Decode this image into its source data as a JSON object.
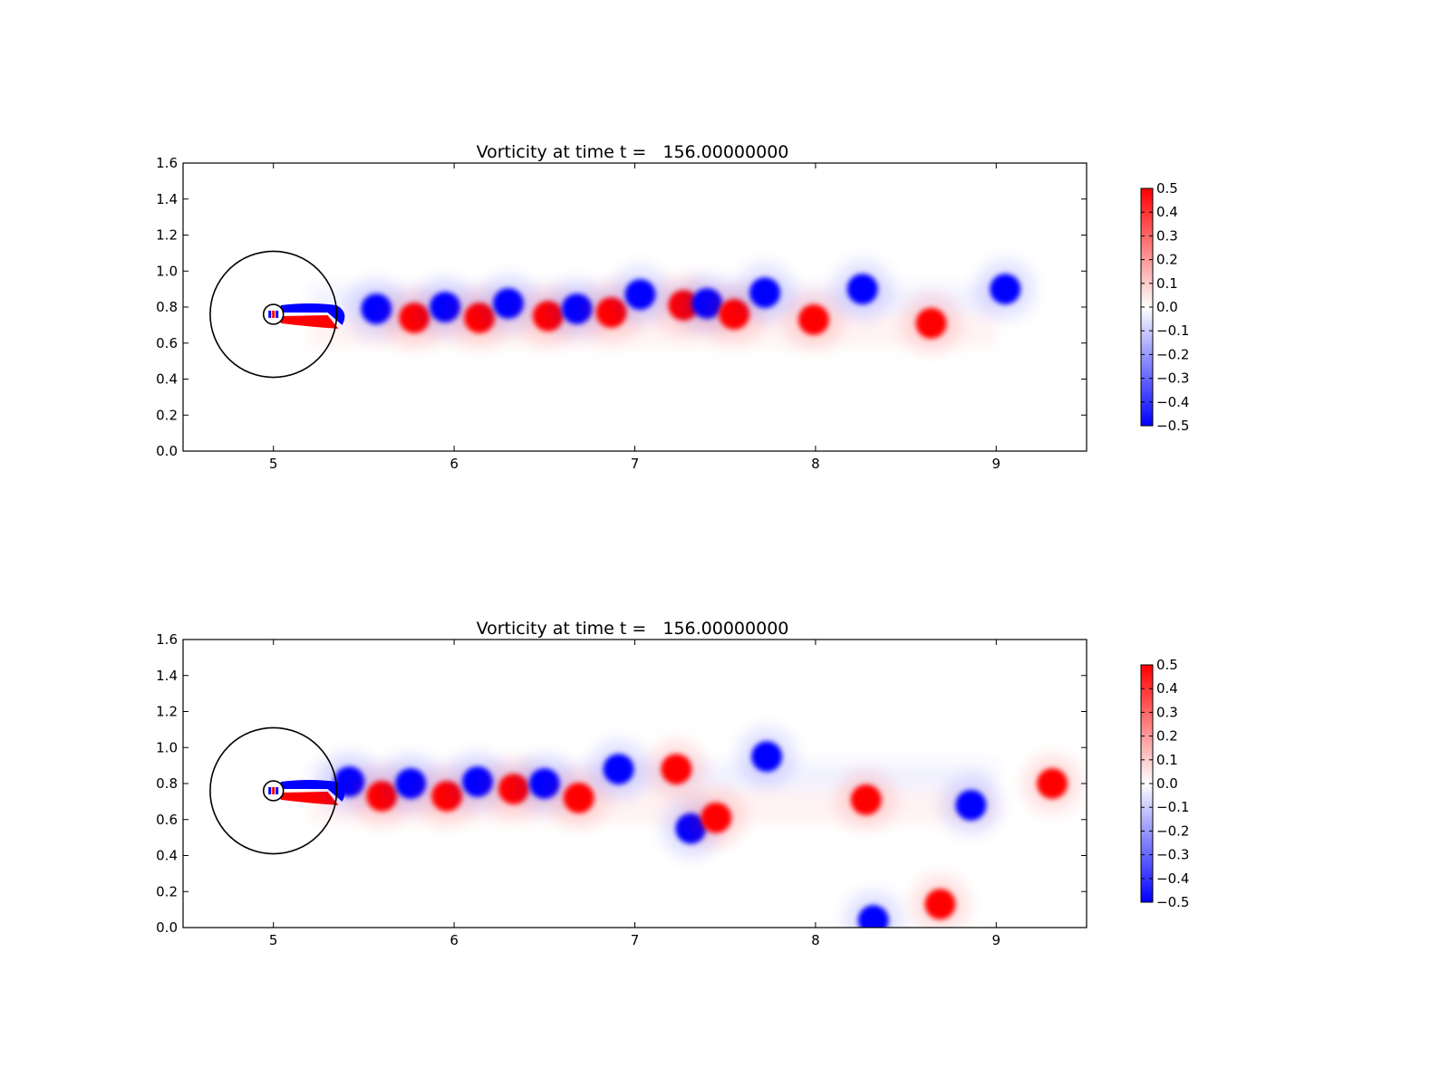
{
  "chart_data": [
    {
      "type": "heatmap",
      "title": "Vorticity at time t =   156.00000000",
      "xlabel": "",
      "ylabel": "",
      "xlim": [
        4.5,
        9.5
      ],
      "ylim": [
        0.0,
        1.6
      ],
      "x_ticks": [
        "5",
        "6",
        "7",
        "8",
        "9"
      ],
      "y_ticks": [
        "0.0",
        "0.2",
        "0.4",
        "0.6",
        "0.8",
        "1.0",
        "1.2",
        "1.4",
        "1.6"
      ],
      "colorbar": {
        "colormap": "bwr",
        "range": [
          -0.5,
          0.5
        ],
        "ticks": [
          "0.5",
          "0.4",
          "0.3",
          "0.2",
          "0.1",
          "0.0",
          "−0.1",
          "−0.2",
          "−0.3",
          "−0.4",
          "−0.5"
        ],
        "colors": {
          "positive": "#ff0000",
          "zero": "#ffffff",
          "negative": "#0000ff"
        }
      },
      "circles": [
        {
          "cx": 5.0,
          "cy": 0.76,
          "r": 0.35
        },
        {
          "cx": 5.0,
          "cy": 0.76,
          "r": 0.055
        }
      ],
      "vortices": [
        {
          "x": 5.57,
          "y": 0.79,
          "sign": -1
        },
        {
          "x": 5.78,
          "y": 0.74,
          "sign": 1
        },
        {
          "x": 5.95,
          "y": 0.8,
          "sign": -1
        },
        {
          "x": 6.14,
          "y": 0.74,
          "sign": 1
        },
        {
          "x": 6.3,
          "y": 0.82,
          "sign": -1
        },
        {
          "x": 6.52,
          "y": 0.75,
          "sign": 1
        },
        {
          "x": 6.68,
          "y": 0.79,
          "sign": -1
        },
        {
          "x": 6.87,
          "y": 0.77,
          "sign": 1
        },
        {
          "x": 7.03,
          "y": 0.87,
          "sign": -1
        },
        {
          "x": 7.27,
          "y": 0.81,
          "sign": 1
        },
        {
          "x": 7.4,
          "y": 0.82,
          "sign": -1
        },
        {
          "x": 7.55,
          "y": 0.76,
          "sign": 1
        },
        {
          "x": 7.72,
          "y": 0.88,
          "sign": -1
        },
        {
          "x": 7.99,
          "y": 0.73,
          "sign": 1
        },
        {
          "x": 8.26,
          "y": 0.9,
          "sign": -1
        },
        {
          "x": 8.64,
          "y": 0.71,
          "sign": 1
        },
        {
          "x": 9.05,
          "y": 0.9,
          "sign": -1
        }
      ],
      "near_wake": {
        "upper_sign": -1,
        "lower_sign": 1,
        "x_end": 5.4
      }
    },
    {
      "type": "heatmap",
      "title": "Vorticity at time t =   156.00000000",
      "xlabel": "",
      "ylabel": "",
      "xlim": [
        4.5,
        9.5
      ],
      "ylim": [
        0.0,
        1.6
      ],
      "x_ticks": [
        "5",
        "6",
        "7",
        "8",
        "9"
      ],
      "y_ticks": [
        "0.0",
        "0.2",
        "0.4",
        "0.6",
        "0.8",
        "1.0",
        "1.2",
        "1.4",
        "1.6"
      ],
      "colorbar": {
        "colormap": "bwr",
        "range": [
          -0.5,
          0.5
        ],
        "ticks": [
          "0.5",
          "0.4",
          "0.3",
          "0.2",
          "0.1",
          "0.0",
          "−0.1",
          "−0.2",
          "−0.3",
          "−0.4",
          "−0.5"
        ],
        "colors": {
          "positive": "#ff0000",
          "zero": "#ffffff",
          "negative": "#0000ff"
        }
      },
      "circles": [
        {
          "cx": 5.0,
          "cy": 0.76,
          "r": 0.35
        },
        {
          "cx": 5.0,
          "cy": 0.76,
          "r": 0.055
        }
      ],
      "vortices": [
        {
          "x": 5.42,
          "y": 0.81,
          "sign": -1
        },
        {
          "x": 5.6,
          "y": 0.73,
          "sign": 1
        },
        {
          "x": 5.76,
          "y": 0.8,
          "sign": -1
        },
        {
          "x": 5.96,
          "y": 0.73,
          "sign": 1
        },
        {
          "x": 6.13,
          "y": 0.81,
          "sign": -1
        },
        {
          "x": 6.33,
          "y": 0.77,
          "sign": 1
        },
        {
          "x": 6.5,
          "y": 0.8,
          "sign": -1
        },
        {
          "x": 6.69,
          "y": 0.72,
          "sign": 1
        },
        {
          "x": 6.91,
          "y": 0.88,
          "sign": -1
        },
        {
          "x": 7.23,
          "y": 0.88,
          "sign": 1
        },
        {
          "x": 7.31,
          "y": 0.55,
          "sign": -1
        },
        {
          "x": 7.45,
          "y": 0.61,
          "sign": 1
        },
        {
          "x": 7.73,
          "y": 0.95,
          "sign": -1
        },
        {
          "x": 8.28,
          "y": 0.71,
          "sign": 1
        },
        {
          "x": 8.86,
          "y": 0.68,
          "sign": -1
        },
        {
          "x": 9.31,
          "y": 0.8,
          "sign": 1
        },
        {
          "x": 8.69,
          "y": 0.13,
          "sign": 1
        },
        {
          "x": 8.32,
          "y": 0.04,
          "sign": -1
        }
      ],
      "near_wake": {
        "upper_sign": -1,
        "lower_sign": 1,
        "x_end": 5.4
      }
    }
  ]
}
